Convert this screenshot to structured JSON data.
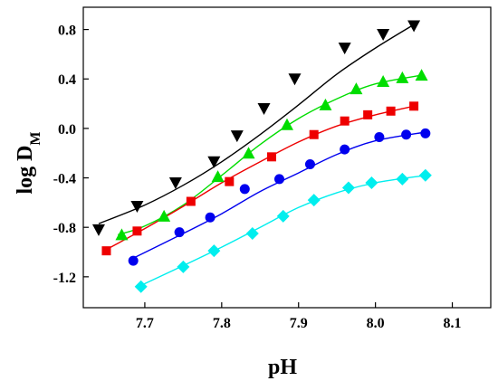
{
  "chart_data": {
    "type": "scatter",
    "title": "",
    "xlabel": "pH",
    "ylabel": "log D",
    "ylabel_subscript": "M",
    "xlim": [
      7.62,
      8.15
    ],
    "ylim": [
      -1.45,
      0.98
    ],
    "xticks": [
      7.7,
      7.8,
      7.9,
      8.0,
      8.1
    ],
    "xtick_labels": [
      "7.7",
      "7.8",
      "7.9",
      "8.0",
      "8.1"
    ],
    "yticks": [
      -1.2,
      -0.8,
      -0.4,
      0.0,
      0.4,
      0.8
    ],
    "ytick_labels": [
      "-1.2",
      "-0.8",
      "-0.4",
      "0.0",
      "0.4",
      "0.8"
    ],
    "grid": false,
    "legend": "none",
    "series": [
      {
        "marker": "triangle-down",
        "color": "#000000",
        "x": [
          7.64,
          7.69,
          7.74,
          7.79,
          7.82,
          7.855,
          7.895,
          7.96,
          8.01,
          8.05
        ],
        "y": [
          -0.82,
          -0.63,
          -0.44,
          -0.27,
          -0.06,
          0.16,
          0.4,
          0.65,
          0.76,
          0.83
        ],
        "fit_x": [
          7.64,
          7.7,
          7.75,
          7.8,
          7.85,
          7.9,
          7.95,
          8.0,
          8.05
        ],
        "fit_y": [
          -0.77,
          -0.62,
          -0.46,
          -0.27,
          -0.05,
          0.19,
          0.44,
          0.65,
          0.84
        ]
      },
      {
        "marker": "triangle-up",
        "color": "#00dd00",
        "x": [
          7.67,
          7.725,
          7.795,
          7.835,
          7.885,
          7.935,
          7.975,
          8.01,
          8.035,
          8.06
        ],
        "y": [
          -0.86,
          -0.71,
          -0.39,
          -0.2,
          0.03,
          0.19,
          0.32,
          0.38,
          0.41,
          0.43
        ],
        "fit_x": [
          7.665,
          7.7,
          7.75,
          7.8,
          7.85,
          7.9,
          7.95,
          8.0,
          8.06
        ],
        "fit_y": [
          -0.86,
          -0.79,
          -0.62,
          -0.38,
          -0.13,
          0.08,
          0.24,
          0.36,
          0.43
        ]
      },
      {
        "marker": "square",
        "color": "#ee0000",
        "x": [
          7.65,
          7.69,
          7.76,
          7.81,
          7.865,
          7.92,
          7.96,
          7.99,
          8.02,
          8.05
        ],
        "y": [
          -0.99,
          -0.83,
          -0.59,
          -0.43,
          -0.23,
          -0.05,
          0.06,
          0.11,
          0.14,
          0.18
        ],
        "fit_x": [
          7.65,
          7.7,
          7.75,
          7.8,
          7.85,
          7.9,
          7.95,
          8.0,
          8.05
        ],
        "fit_y": [
          -0.98,
          -0.81,
          -0.63,
          -0.44,
          -0.27,
          -0.11,
          0.02,
          0.11,
          0.18
        ]
      },
      {
        "marker": "circle",
        "color": "#0000ee",
        "x": [
          7.685,
          7.745,
          7.785,
          7.83,
          7.875,
          7.915,
          7.96,
          8.005,
          8.04,
          8.065
        ],
        "y": [
          -1.07,
          -0.84,
          -0.72,
          -0.49,
          -0.41,
          -0.29,
          -0.17,
          -0.07,
          -0.05,
          -0.04
        ],
        "fit_x": [
          7.685,
          7.75,
          7.8,
          7.85,
          7.9,
          7.95,
          8.0,
          8.065
        ],
        "fit_y": [
          -1.05,
          -0.85,
          -0.69,
          -0.51,
          -0.36,
          -0.21,
          -0.1,
          -0.03
        ]
      },
      {
        "marker": "diamond",
        "color": "#00eeee",
        "x": [
          7.695,
          7.75,
          7.79,
          7.84,
          7.88,
          7.92,
          7.965,
          7.995,
          8.035,
          8.065
        ],
        "y": [
          -1.28,
          -1.12,
          -0.99,
          -0.85,
          -0.71,
          -0.58,
          -0.48,
          -0.44,
          -0.41,
          -0.38
        ],
        "fit_x": [
          7.695,
          7.75,
          7.8,
          7.85,
          7.9,
          7.95,
          8.0,
          8.065
        ],
        "fit_y": [
          -1.27,
          -1.11,
          -0.96,
          -0.8,
          -0.64,
          -0.52,
          -0.44,
          -0.38
        ]
      }
    ]
  }
}
